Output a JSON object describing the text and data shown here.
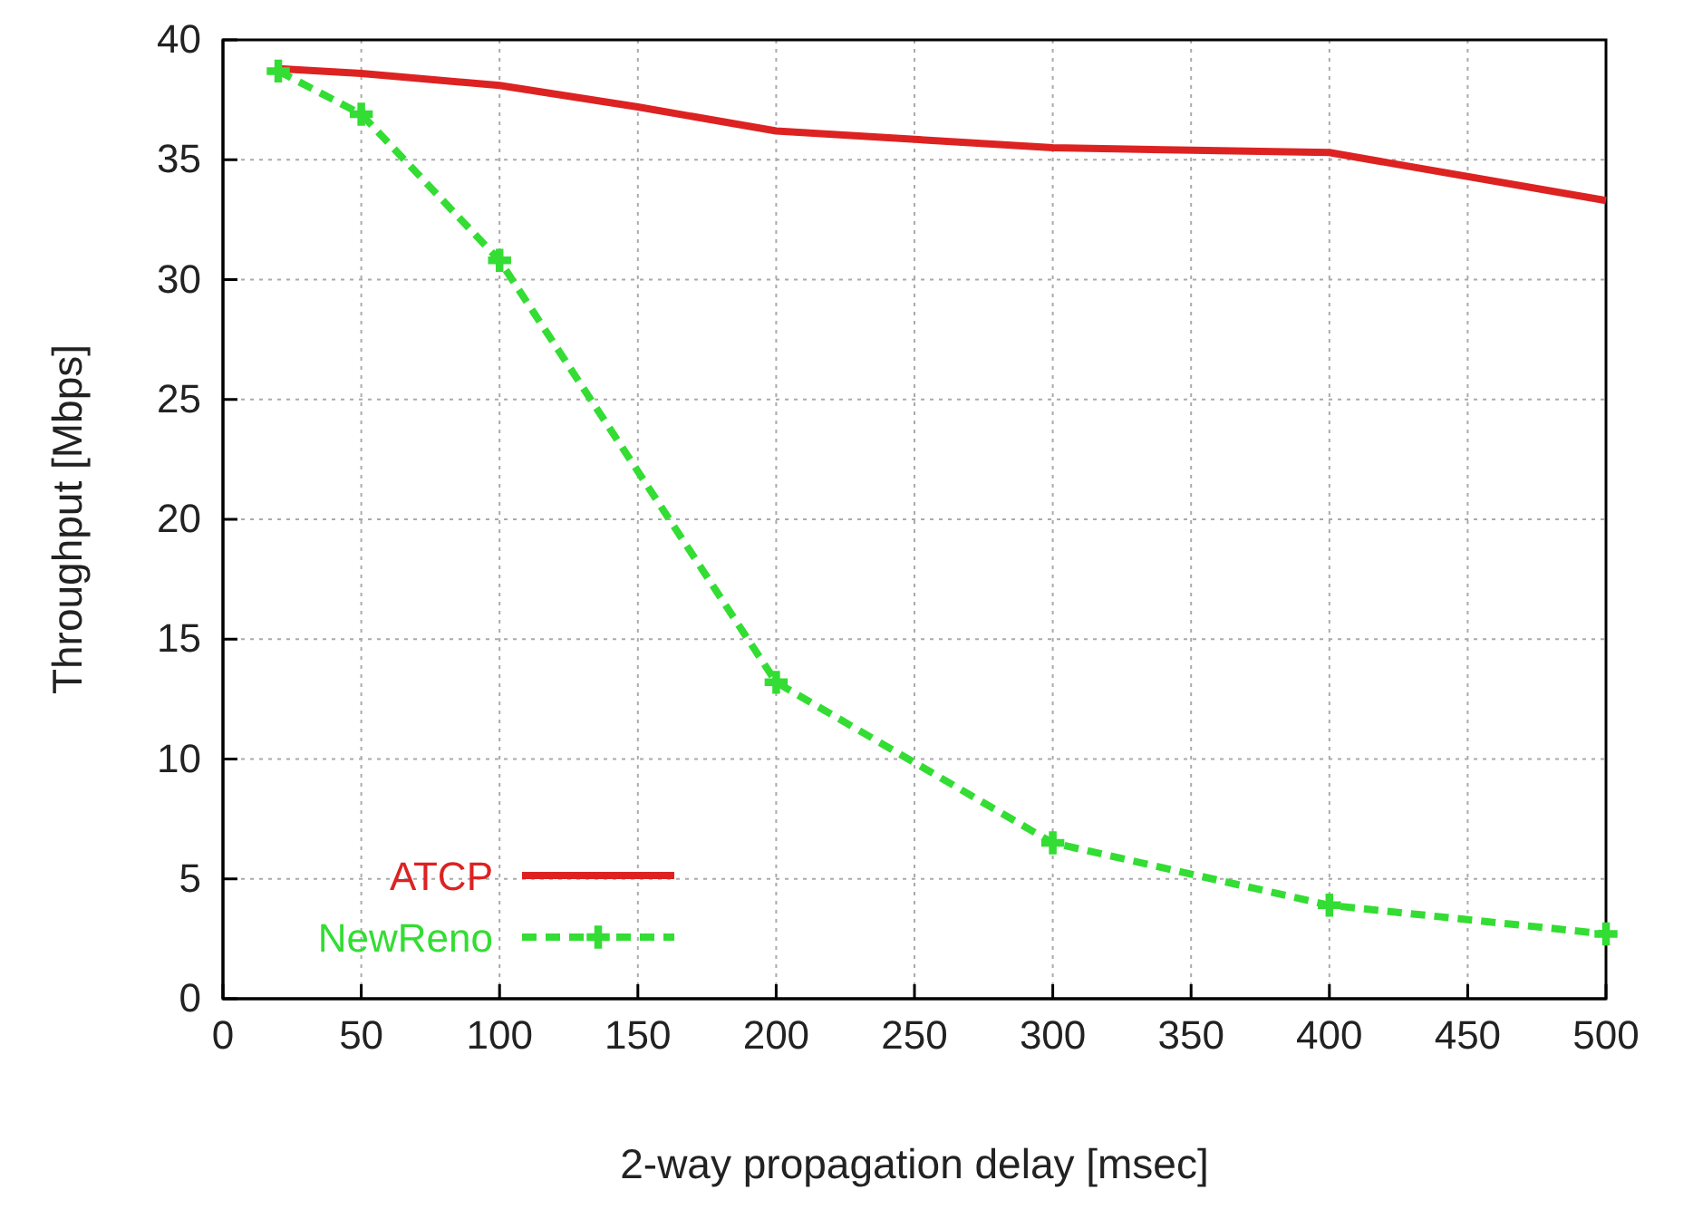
{
  "chart_data": {
    "type": "line",
    "xlabel": "2-way propagation delay [msec]",
    "ylabel": "Throughput [Mbps]",
    "xlim": [
      0,
      500
    ],
    "xticks": [
      0,
      50,
      100,
      150,
      200,
      250,
      300,
      350,
      400,
      450,
      500
    ],
    "ylim": [
      0,
      40
    ],
    "yticks": [
      0,
      5,
      10,
      15,
      20,
      25,
      30,
      35,
      40
    ],
    "grid": true,
    "legend": "bottom left",
    "series": [
      {
        "name": "ATCP",
        "color": "#dd2222",
        "x": [
          20,
          50,
          100,
          150,
          200,
          300,
          400,
          500
        ],
        "values": [
          38.8,
          38.6,
          38.1,
          37.2,
          36.2,
          35.5,
          35.3,
          33.3
        ],
        "marker": "none",
        "line_style": "solid"
      },
      {
        "name": "NewReno",
        "color": "#33dd33",
        "x": [
          20,
          50,
          100,
          200,
          300,
          400,
          500
        ],
        "values": [
          38.7,
          36.9,
          30.8,
          13.2,
          6.5,
          3.9,
          2.7
        ],
        "marker": "cross",
        "line_style": "dashed"
      }
    ]
  }
}
